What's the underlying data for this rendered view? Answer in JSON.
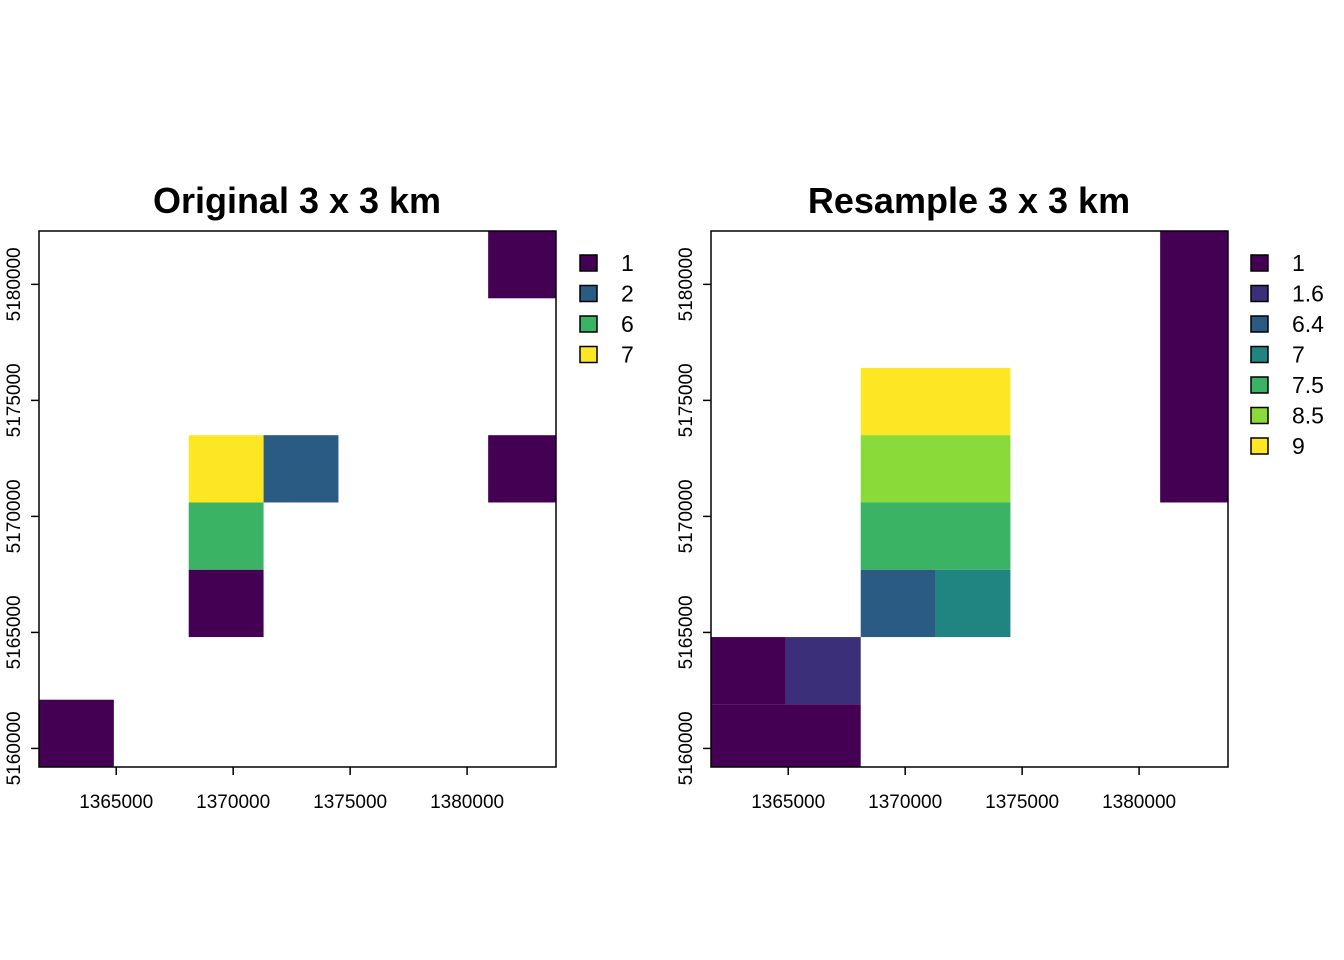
{
  "chart_data": [
    {
      "type": "heatmap",
      "title": "Original 3 x 3 km",
      "xlabel": "",
      "ylabel": "",
      "xlim": [
        1361700,
        1383800
      ],
      "ylim": [
        5159200,
        5182300
      ],
      "xticks": [
        1365000,
        1370000,
        1375000,
        1380000
      ],
      "yticks": [
        5160000,
        5165000,
        5170000,
        5175000,
        5180000
      ],
      "grid": false,
      "legend_position": "right",
      "legend": [
        {
          "label": "1",
          "color": "#440154"
        },
        {
          "label": "2",
          "color": "#2A5C83"
        },
        {
          "label": "6",
          "color": "#3AB464"
        },
        {
          "label": "7",
          "color": "#FDE725"
        }
      ],
      "cells": [
        {
          "x0": 1380900,
          "x1": 1383800,
          "y0": 5179400,
          "y1": 5182300,
          "value": 1
        },
        {
          "x0": 1368100,
          "x1": 1371300,
          "y0": 5170600,
          "y1": 5173500,
          "value": 7
        },
        {
          "x0": 1371300,
          "x1": 1374500,
          "y0": 5170600,
          "y1": 5173500,
          "value": 2
        },
        {
          "x0": 1380900,
          "x1": 1383800,
          "y0": 5170600,
          "y1": 5173500,
          "value": 1
        },
        {
          "x0": 1368100,
          "x1": 1371300,
          "y0": 5167700,
          "y1": 5170600,
          "value": 6
        },
        {
          "x0": 1368100,
          "x1": 1371300,
          "y0": 5164800,
          "y1": 5167700,
          "value": 1
        },
        {
          "x0": 1361700,
          "x1": 1364900,
          "y0": 5159200,
          "y1": 5162100,
          "value": 1
        }
      ]
    },
    {
      "type": "heatmap",
      "title": "Resample 3 x 3 km",
      "xlabel": "",
      "ylabel": "",
      "xlim": [
        1361700,
        1383800
      ],
      "ylim": [
        5159200,
        5182300
      ],
      "xticks": [
        1365000,
        1370000,
        1375000,
        1380000
      ],
      "yticks": [
        5160000,
        5165000,
        5170000,
        5175000,
        5180000
      ],
      "grid": false,
      "legend_position": "right",
      "legend": [
        {
          "label": "1",
          "color": "#440154"
        },
        {
          "label": "1.6",
          "color": "#3B2F7A"
        },
        {
          "label": "6.4",
          "color": "#2A5C83"
        },
        {
          "label": "7",
          "color": "#208480"
        },
        {
          "label": "7.5",
          "color": "#3AB464"
        },
        {
          "label": "8.5",
          "color": "#8ADB3A"
        },
        {
          "label": "9",
          "color": "#FDE725"
        }
      ],
      "cells": [
        {
          "x0": 1380900,
          "x1": 1383800,
          "y0": 5170600,
          "y1": 5182300,
          "value": 1
        },
        {
          "x0": 1368100,
          "x1": 1374500,
          "y0": 5173500,
          "y1": 5176400,
          "value": 9
        },
        {
          "x0": 1368100,
          "x1": 1374500,
          "y0": 5170600,
          "y1": 5173500,
          "value": 8.5
        },
        {
          "x0": 1368100,
          "x1": 1374500,
          "y0": 5167700,
          "y1": 5170600,
          "value": 7.5
        },
        {
          "x0": 1368100,
          "x1": 1371300,
          "y0": 5164800,
          "y1": 5167700,
          "value": 6.4
        },
        {
          "x0": 1371300,
          "x1": 1374500,
          "y0": 5164800,
          "y1": 5167700,
          "value": 7
        },
        {
          "x0": 1361700,
          "x1": 1364900,
          "y0": 5161900,
          "y1": 5164800,
          "value": 1
        },
        {
          "x0": 1364900,
          "x1": 1368100,
          "y0": 5161900,
          "y1": 5164800,
          "value": 1.6
        },
        {
          "x0": 1361700,
          "x1": 1368100,
          "y0": 5159200,
          "y1": 5161900,
          "value": 1
        }
      ]
    }
  ]
}
